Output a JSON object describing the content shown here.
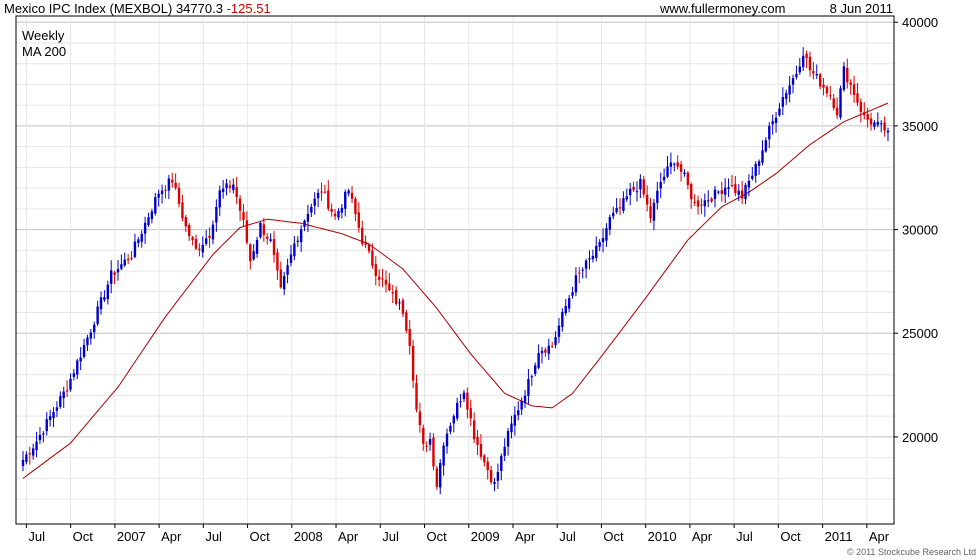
{
  "header": {
    "index_name": "Mexico IPC Index (MEXBOL)",
    "last_value": "34770.3",
    "change": "-125.51",
    "website": "www.fullermoney.com",
    "date": "8 Jun 2011"
  },
  "legend": {
    "weekly": "Weekly",
    "ma": "MA 200"
  },
  "copyright": "© 2011 Stockcube Research Ltd",
  "colors": {
    "up": "#0000cc",
    "down": "#dd0000",
    "ma": "#aa0000",
    "grid": "#d0d0d0",
    "frame": "#000000",
    "change_text": "#cc0000",
    "legend_weekly": "#000099",
    "legend_ma": "#aa0000"
  },
  "chart_data": {
    "type": "candlestick",
    "y_axis_position": "right",
    "ylim": [
      15800,
      40300
    ],
    "y_ticks": [
      20000,
      25000,
      30000,
      35000,
      40000
    ],
    "grid": true,
    "legend_placement": "top-left",
    "x_tick_labels": [
      "Jul",
      "Oct",
      "2007",
      "Apr",
      "Jul",
      "Oct",
      "2008",
      "Apr",
      "Jul",
      "Oct",
      "2009",
      "Apr",
      "Jul",
      "Oct",
      "2010",
      "Apr",
      "Jul",
      "Oct",
      "2011",
      "Apr"
    ],
    "weeks_total": 256,
    "weekly_close_anchors": [
      [
        0,
        18900
      ],
      [
        4,
        19800
      ],
      [
        13,
        22400
      ],
      [
        20,
        25200
      ],
      [
        26,
        27800
      ],
      [
        32,
        28800
      ],
      [
        40,
        31800
      ],
      [
        44,
        32400
      ],
      [
        48,
        30100
      ],
      [
        51,
        29000
      ],
      [
        55,
        29800
      ],
      [
        58,
        31800
      ],
      [
        62,
        32200
      ],
      [
        65,
        30300
      ],
      [
        67,
        28500
      ],
      [
        70,
        30200
      ],
      [
        73,
        29400
      ],
      [
        76,
        27000
      ],
      [
        80,
        29300
      ],
      [
        84,
        30900
      ],
      [
        88,
        31900
      ],
      [
        92,
        30600
      ],
      [
        96,
        31900
      ],
      [
        100,
        29500
      ],
      [
        104,
        28000
      ],
      [
        108,
        27000
      ],
      [
        112,
        26100
      ],
      [
        114,
        24600
      ],
      [
        116,
        21300
      ],
      [
        118,
        19500
      ],
      [
        120,
        19900
      ],
      [
        122,
        17700
      ],
      [
        124,
        19800
      ],
      [
        127,
        21100
      ],
      [
        130,
        22300
      ],
      [
        133,
        20100
      ],
      [
        136,
        18800
      ],
      [
        139,
        17700
      ],
      [
        142,
        19600
      ],
      [
        145,
        21000
      ],
      [
        149,
        22600
      ],
      [
        152,
        24200
      ],
      [
        156,
        24400
      ],
      [
        160,
        26300
      ],
      [
        163,
        27600
      ],
      [
        166,
        28300
      ],
      [
        170,
        29200
      ],
      [
        173,
        30500
      ],
      [
        176,
        31000
      ],
      [
        179,
        31800
      ],
      [
        182,
        32200
      ],
      [
        185,
        30600
      ],
      [
        188,
        32300
      ],
      [
        192,
        33400
      ],
      [
        195,
        32500
      ],
      [
        198,
        31200
      ],
      [
        201,
        31400
      ],
      [
        204,
        31700
      ],
      [
        208,
        32200
      ],
      [
        212,
        31600
      ],
      [
        216,
        33000
      ],
      [
        220,
        34800
      ],
      [
        224,
        36400
      ],
      [
        228,
        37600
      ],
      [
        230,
        38600
      ],
      [
        232,
        37700
      ],
      [
        235,
        37100
      ],
      [
        238,
        36500
      ],
      [
        240,
        35700
      ],
      [
        242,
        37700
      ],
      [
        245,
        36600
      ],
      [
        248,
        35400
      ],
      [
        251,
        35100
      ],
      [
        253,
        34900
      ],
      [
        255,
        34770
      ]
    ],
    "ma200_anchors": [
      [
        0,
        18000
      ],
      [
        14,
        19700
      ],
      [
        28,
        22400
      ],
      [
        42,
        25800
      ],
      [
        56,
        28800
      ],
      [
        64,
        30100
      ],
      [
        72,
        30500
      ],
      [
        82,
        30300
      ],
      [
        94,
        29800
      ],
      [
        102,
        29300
      ],
      [
        112,
        28100
      ],
      [
        122,
        26200
      ],
      [
        132,
        24000
      ],
      [
        142,
        22100
      ],
      [
        150,
        21500
      ],
      [
        156,
        21400
      ],
      [
        162,
        22100
      ],
      [
        172,
        24200
      ],
      [
        184,
        26800
      ],
      [
        196,
        29500
      ],
      [
        206,
        31100
      ],
      [
        214,
        31800
      ],
      [
        222,
        32700
      ],
      [
        232,
        34100
      ],
      [
        242,
        35200
      ],
      [
        255,
        36100
      ]
    ]
  }
}
